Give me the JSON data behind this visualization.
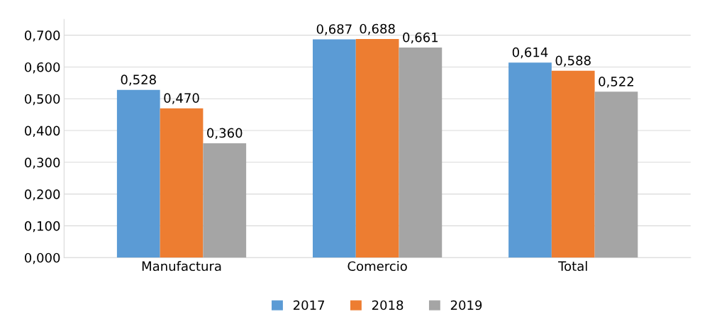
{
  "chart_data": {
    "type": "bar",
    "categories": [
      "Manufactura",
      "Comercio",
      "Total"
    ],
    "series": [
      {
        "name": "2017",
        "color": "#5b9bd5",
        "values": [
          0.528,
          0.687,
          0.614
        ],
        "value_labels": [
          "0,528",
          "0,687",
          "0,614"
        ]
      },
      {
        "name": "2018",
        "color": "#ed7d31",
        "values": [
          0.47,
          0.688,
          0.588
        ],
        "value_labels": [
          "0,470",
          "0,688",
          "0,588"
        ]
      },
      {
        "name": "2019",
        "color": "#a5a5a5",
        "values": [
          0.36,
          0.661,
          0.522
        ],
        "value_labels": [
          "0,360",
          "0,661",
          "0,522"
        ]
      }
    ],
    "ylim": [
      0,
      0.75
    ],
    "yticks": [
      {
        "value": 0,
        "label": "0,000"
      },
      {
        "value": 0.1,
        "label": "0,100"
      },
      {
        "value": 0.2,
        "label": "0,200"
      },
      {
        "value": 0.3,
        "label": "0,300"
      },
      {
        "value": 0.4,
        "label": "0,400"
      },
      {
        "value": 0.5,
        "label": "0,500"
      },
      {
        "value": 0.6,
        "label": "0,600"
      },
      {
        "value": 0.7,
        "label": "0,700"
      }
    ],
    "grid": "y",
    "legend": "bottom"
  }
}
